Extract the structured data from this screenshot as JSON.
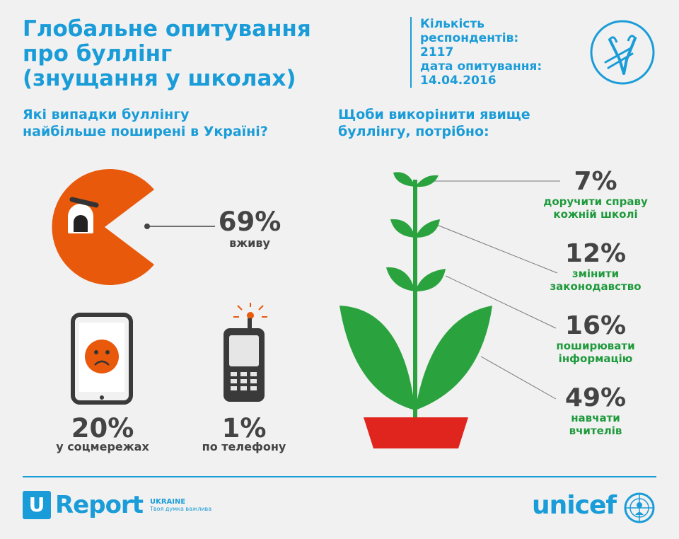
{
  "header": {
    "title_lines": [
      "Глобальне опитування",
      "про буллінг",
      "(знущання у школах)"
    ],
    "meta_lines": [
      "Кількість",
      "респондентів:",
      "2117",
      "дата опитування:",
      "14.04.2016"
    ]
  },
  "left": {
    "question_lines": [
      "Які випадки буллінгу",
      "найбільше поширені в Україні?"
    ],
    "live_pct": "69%",
    "live_label": "вживу",
    "social_pct": "20%",
    "social_label": "у соцмережах",
    "phone_pct": "1%",
    "phone_label": "по телефону"
  },
  "right": {
    "question_lines": [
      "Щоби викорінити явище",
      "буллінгу, потрібно:"
    ],
    "items": [
      {
        "pct": "7%",
        "label_lines": [
          "доручити справу",
          "кожній школі"
        ]
      },
      {
        "pct": "12%",
        "label_lines": [
          "змінити",
          "законодавство"
        ]
      },
      {
        "pct": "16%",
        "label_lines": [
          "поширювати",
          "інформацію"
        ]
      },
      {
        "pct": "49%",
        "label_lines": [
          "навчати",
          "вчителів"
        ]
      }
    ]
  },
  "footer": {
    "ureport_letter": "U",
    "ureport_word": "Report",
    "ureport_country": "UKRAINE",
    "ureport_tagline": "Твоя думка важлива",
    "unicef_word": "unicef"
  },
  "colors": {
    "brand_blue": "#1a9cd8",
    "pacman_orange": "#e8590c",
    "leaf_green": "#2aa33e",
    "pot_red": "#e0251f"
  },
  "icons": [
    "slingshot-icon",
    "angry-pacman-icon",
    "smartphone-sad-face-icon",
    "mobile-phone-ringing-icon",
    "plant-icon",
    "unicef-globe-icon"
  ]
}
